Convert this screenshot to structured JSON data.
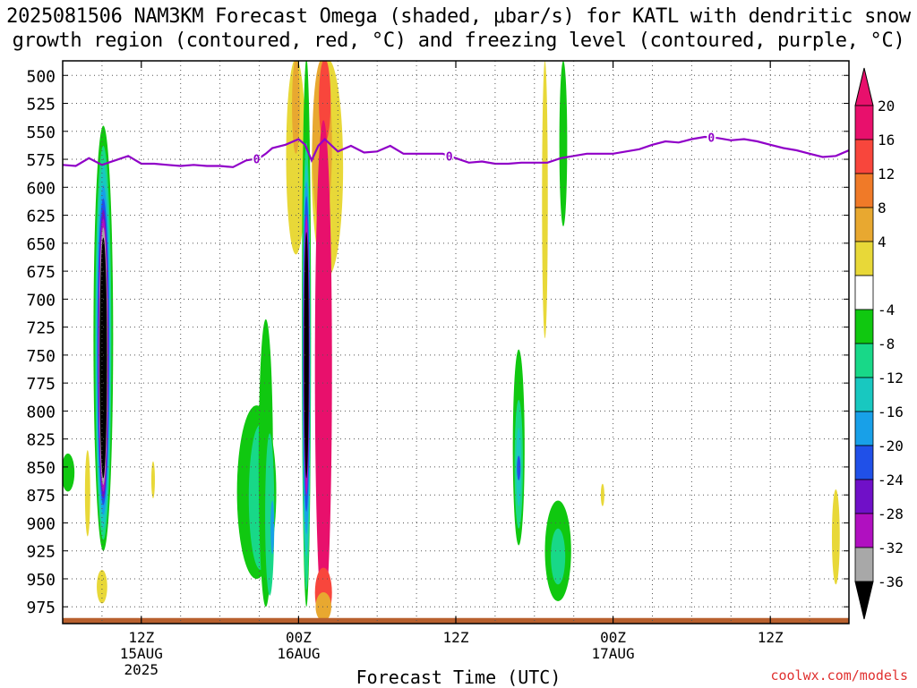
{
  "header": {
    "title_line1": "2025081506 NAM3KM Forecast Omega (shaded, μbar/s) for KATL with dendritic snow",
    "title_line2": "growth region (contoured, red, °C) and freezing level (contoured, purple, °C)"
  },
  "footer": {
    "credit": "coolwx.com/models",
    "xlabel": "Forecast Time (UTC)"
  },
  "chart_data": {
    "type": "heatmap",
    "title": "2025081506 NAM3KM Forecast Omega (shaded, μbar/s) for KATL with dendritic snow growth region (contoured, red, °C) and freezing level (contoured, purple, °C)",
    "xlabel": "Forecast Time (UTC)",
    "ylabel": "",
    "x_range_hours": [
      0,
      60
    ],
    "y_range_hPa": [
      487,
      990
    ],
    "y_ticks": [
      500,
      525,
      550,
      575,
      600,
      625,
      650,
      675,
      700,
      725,
      750,
      775,
      800,
      825,
      850,
      875,
      900,
      925,
      950,
      975
    ],
    "x_ticks": [
      {
        "hour": 6,
        "label": "12Z",
        "sub1": "15AUG",
        "sub2": "2025"
      },
      {
        "hour": 18,
        "label": "00Z",
        "sub1": "16AUG",
        "sub2": ""
      },
      {
        "hour": 30,
        "label": "12Z",
        "sub1": "",
        "sub2": ""
      },
      {
        "hour": 42,
        "label": "00Z",
        "sub1": "17AUG",
        "sub2": ""
      },
      {
        "hour": 54,
        "label": "12Z",
        "sub1": "",
        "sub2": ""
      }
    ],
    "grid": true,
    "colorbar": {
      "labels": [
        "20",
        "16",
        "12",
        "8",
        "4",
        "-4",
        "-8",
        "-12",
        "-16",
        "-20",
        "-24",
        "-28",
        "-32",
        "-36"
      ],
      "colors": [
        "#e8106c",
        "#f8463c",
        "#f07a28",
        "#e8a830",
        "#e8d838",
        "#ffffff",
        "#10c810",
        "#18d888",
        "#18c8c0",
        "#18a0e8",
        "#2050e8",
        "#7010c8",
        "#b010c0",
        "#a8a8a8"
      ],
      "top_color": "#e8106c",
      "bottom_color": "#000000"
    },
    "freezing_level": {
      "color": "#9000c8",
      "label": "0",
      "hours": [
        0,
        1,
        2,
        3,
        4,
        5,
        6,
        7,
        8,
        9,
        10,
        11,
        12,
        13,
        14,
        15,
        15.5,
        16,
        17,
        18,
        18.5,
        19,
        19.5,
        20,
        21,
        22,
        23,
        24,
        25,
        26,
        27,
        28,
        29,
        30,
        31,
        32,
        33,
        34,
        35,
        36,
        37,
        38,
        39,
        40,
        41,
        42,
        43,
        44,
        45,
        46,
        47,
        48,
        49,
        50,
        51,
        52,
        53,
        54,
        55,
        56,
        57,
        58,
        59,
        60
      ],
      "pressure_hPa": [
        580,
        581,
        574,
        580,
        576,
        572,
        579,
        579,
        580,
        581,
        580,
        581,
        581,
        582,
        576,
        574,
        570,
        565,
        562,
        557,
        562,
        576,
        563,
        557,
        568,
        563,
        569,
        568,
        563,
        570,
        570,
        570,
        570,
        574,
        578,
        577,
        579,
        579,
        578,
        578,
        578,
        574,
        572,
        570,
        570,
        570,
        568,
        566,
        562,
        559,
        560,
        557,
        555,
        556,
        558,
        557,
        559,
        562,
        565,
        567,
        570,
        573,
        572,
        567
      ],
      "label_hours": [
        14.8,
        29.5,
        49.5
      ]
    },
    "freezing_level_label": "0",
    "surface_band": {
      "color": "#b8602e",
      "top_hPa": 985
    }
  }
}
